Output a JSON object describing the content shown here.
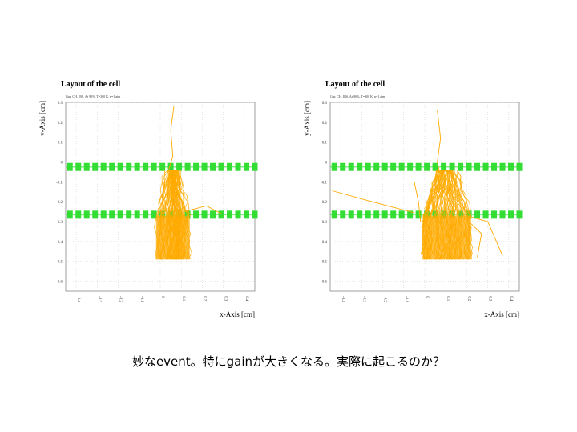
{
  "caption": "妙なevent。特にgainが大きくなる。実際に起こるのか？",
  "chart_data": [
    {
      "type": "scatter",
      "title": "Layout of the cell",
      "subtitle": "Gas: CH, IBS, Ar 90%, T=300 K, p=1 atm",
      "xlabel": "x-Axis [cm]",
      "ylabel": "y-Axis [cm]",
      "xlim": [
        -0.45,
        0.45
      ],
      "ylim": [
        -0.65,
        0.3
      ],
      "x_ticks": [
        "-0.4",
        "-0.3",
        "-0.2",
        "-0.1",
        "0",
        "0.1",
        "0.2",
        "0.3",
        "0.4"
      ],
      "y_ticks": [
        "0.3",
        "0.2",
        "0.1",
        "0",
        "-0.1",
        "-0.2",
        "-0.3",
        "-0.4",
        "-0.5",
        "-0.6"
      ],
      "grid": true,
      "colors": {
        "wires": "#33dd33",
        "tracks": "#ffaa00"
      },
      "series": [
        {
          "kind": "wires",
          "y": -0.025,
          "x_start": -0.43,
          "x_end": 0.45,
          "count": 23
        },
        {
          "kind": "wires",
          "y": -0.265,
          "x_start": -0.43,
          "x_end": 0.45,
          "count": 23
        },
        {
          "kind": "tracks",
          "avalanche_bottom": -0.49,
          "avalanche_top": -0.04,
          "x_left": -0.02,
          "x_right": 0.14,
          "stray_tracks": [
            [
              [
                0.065,
                0.28
              ],
              [
                0.05,
                0.16
              ],
              [
                0.06,
                0.03
              ],
              [
                0.04,
                -0.04
              ]
            ],
            [
              [
                0.08,
                -0.26
              ],
              [
                0.15,
                -0.24
              ],
              [
                0.22,
                -0.22
              ],
              [
                0.29,
                -0.26
              ]
            ]
          ]
        }
      ]
    },
    {
      "type": "scatter",
      "title": "Layout of the cell",
      "subtitle": "Gas: CH, IBS, Ar 90%, T=300 K, p=1 atm",
      "xlabel": "x-Axis [cm]",
      "ylabel": "y-Axis [cm]",
      "xlim": [
        -0.45,
        0.45
      ],
      "ylim": [
        -0.65,
        0.3
      ],
      "x_ticks": [
        "-0.4",
        "-0.3",
        "-0.2",
        "-0.1",
        "0",
        "0.1",
        "0.2",
        "0.3",
        "0.4"
      ],
      "y_ticks": [
        "0.3",
        "0.2",
        "0.1",
        "0",
        "-0.1",
        "-0.2",
        "-0.3",
        "-0.4",
        "-0.5",
        "-0.6"
      ],
      "grid": true,
      "colors": {
        "wires": "#33dd33",
        "tracks": "#ffaa00"
      },
      "series": [
        {
          "kind": "wires",
          "y": -0.025,
          "x_start": -0.43,
          "x_end": 0.45,
          "count": 23
        },
        {
          "kind": "wires",
          "y": -0.265,
          "x_start": -0.43,
          "x_end": 0.45,
          "count": 23
        },
        {
          "kind": "tracks",
          "avalanche_bottom": -0.49,
          "avalanche_top": -0.04,
          "x_left": -0.01,
          "x_right": 0.22,
          "stray_tracks": [
            [
              [
                0.06,
                0.26
              ],
              [
                0.075,
                0.12
              ],
              [
                0.06,
                0.0
              ],
              [
                0.07,
                -0.05
              ]
            ],
            [
              [
                -0.44,
                -0.145
              ],
              [
                -0.25,
                -0.2
              ],
              [
                -0.05,
                -0.255
              ]
            ],
            [
              [
                0.2,
                -0.27
              ],
              [
                0.3,
                -0.3
              ],
              [
                0.37,
                -0.47
              ]
            ],
            [
              [
                0.21,
                -0.3
              ],
              [
                0.27,
                -0.36
              ],
              [
                0.25,
                -0.48
              ]
            ],
            [
              [
                -0.05,
                -0.1
              ],
              [
                -0.03,
                -0.2
              ],
              [
                -0.02,
                -0.3
              ]
            ]
          ]
        }
      ]
    }
  ]
}
